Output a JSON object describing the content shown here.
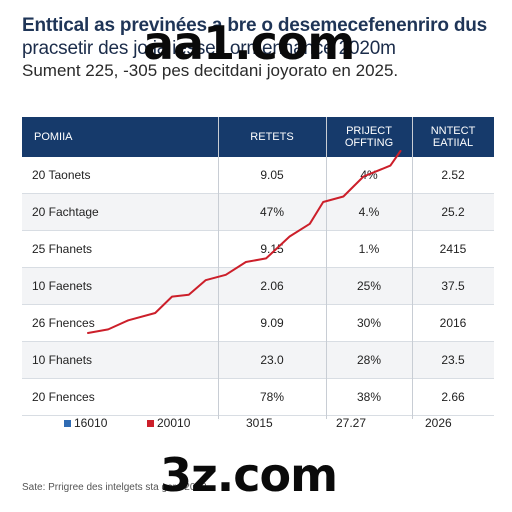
{
  "header": {
    "title_line1": "Enttical as previnées a bre o desemecefenenriro dus",
    "title_line2": "pracsetir des jo        ia  iesses  ormennance 2020m",
    "subtitle": "Sument 225, -305 pes decitdani joyorato en 2025."
  },
  "table": {
    "columns": [
      "POMIIA",
      "RETETS",
      "PRIJECT OFFTING",
      "NNTECT EATIIAL"
    ],
    "rows": [
      [
        "20 Taonets",
        "9.05",
        "4%",
        "2.52"
      ],
      [
        "20 Fachtage",
        "47%",
        "4.%",
        "25.2"
      ],
      [
        "25 Fhanets",
        "9.15",
        "1.%",
        "2415"
      ],
      [
        "10 Faenets",
        "2.06",
        "25%",
        "37.5"
      ],
      [
        "26 Fnences",
        "9.09",
        "30%",
        "2016"
      ],
      [
        "10 Fhanets",
        "23.0",
        "28%",
        "23.5"
      ],
      [
        "20 Fnences",
        "78%",
        "38%",
        "2.66"
      ]
    ]
  },
  "axis": {
    "ticks": [
      "16010",
      "20010",
      "3015",
      "27.27",
      "2026"
    ],
    "legend": [
      {
        "label": "16010",
        "color": "#2f6bb3"
      },
      {
        "label": "20010",
        "color": "#cc1f2a"
      }
    ]
  },
  "source": "Sate: Prrigree des intelgets sta                   gere 2018",
  "watermarks": {
    "top": "aa1.com",
    "bottom": "3z.com"
  },
  "chart_data": {
    "type": "line",
    "title": "",
    "series": [
      {
        "name": "20010",
        "color": "#cc1f2a",
        "points": [
          [
            0.0,
            0.0
          ],
          [
            0.06,
            0.02
          ],
          [
            0.12,
            0.07
          ],
          [
            0.2,
            0.11
          ],
          [
            0.25,
            0.2
          ],
          [
            0.3,
            0.21
          ],
          [
            0.35,
            0.29
          ],
          [
            0.41,
            0.32
          ],
          [
            0.47,
            0.39
          ],
          [
            0.53,
            0.41
          ],
          [
            0.6,
            0.53
          ],
          [
            0.66,
            0.6
          ],
          [
            0.7,
            0.72
          ],
          [
            0.76,
            0.75
          ],
          [
            0.82,
            0.86
          ],
          [
            0.9,
            0.92
          ],
          [
            0.93,
            1.0
          ]
        ]
      }
    ]
  }
}
